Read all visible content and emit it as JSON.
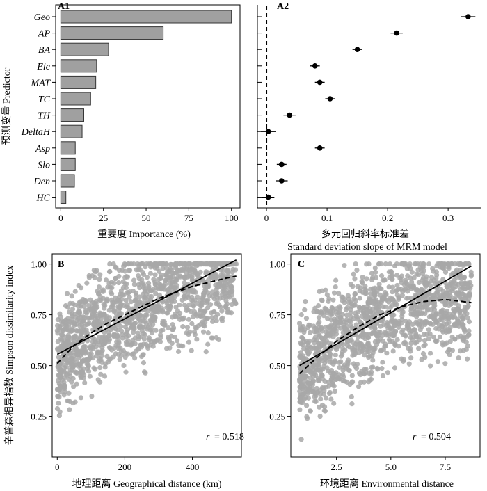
{
  "chart_data": [
    {
      "panel": "A1",
      "type": "bar",
      "orientation": "horizontal",
      "categories": [
        "Geo",
        "AP",
        "BA",
        "Ele",
        "MAT",
        "TC",
        "TH",
        "DeltaH",
        "Asp",
        "Slo",
        "Den",
        "HC"
      ],
      "values": [
        100,
        60,
        28,
        21,
        20.5,
        17.5,
        13.5,
        12.5,
        8.5,
        8.5,
        8,
        3
      ],
      "xlabel": "重要度 Importance (%)",
      "ylabel": "预测变量 Predictor",
      "xticks": [
        0,
        25,
        50,
        75,
        100
      ],
      "xlim": [
        -3,
        105
      ],
      "bar_color": "#a0a0a0"
    },
    {
      "panel": "A2",
      "type": "scatter",
      "subtype": "point-with-error",
      "categories": [
        "Geo",
        "AP",
        "BA",
        "Ele",
        "MAT",
        "TC",
        "TH",
        "DeltaH",
        "Asp",
        "Slo",
        "Den",
        "HC"
      ],
      "values": [
        0.333,
        0.215,
        0.15,
        0.08,
        0.088,
        0.105,
        0.038,
        0.003,
        0.088,
        0.025,
        0.025,
        0.003
      ],
      "errors": [
        0.012,
        0.01,
        0.008,
        0.008,
        0.008,
        0.008,
        0.01,
        0.012,
        0.008,
        0.008,
        0.01,
        0.01
      ],
      "xlabel": "多元回归斜率标准差",
      "xlabel2": "Standard deviation slope of MRM model",
      "xticks": [
        0,
        0.1,
        0.2,
        0.3
      ],
      "xtick_labels": [
        "0",
        "0.1",
        "0.2",
        "0.3"
      ],
      "xlim": [
        -0.015,
        0.355
      ],
      "reference_line": 0
    },
    {
      "panel": "B",
      "type": "scatter",
      "xlabel": "地理距离 Geographical distance (km)",
      "ylabel": "辛普森相异指数 Simpson dissimilarity index",
      "xticks": [
        0,
        200,
        400
      ],
      "yticks": [
        0.25,
        0.5,
        0.75,
        1.0
      ],
      "ytick_labels": [
        "0.25",
        "0.50",
        "0.75",
        "1.00"
      ],
      "xlim": [
        -15,
        545
      ],
      "ylim": [
        0.05,
        1.05
      ],
      "annotation_r": "r",
      "annotation_value": "= 0.518",
      "linear_fit": [
        [
          0,
          0.555
        ],
        [
          530,
          1.02
        ]
      ],
      "smooth_fit": [
        [
          0,
          0.51
        ],
        [
          50,
          0.6
        ],
        [
          100,
          0.66
        ],
        [
          150,
          0.71
        ],
        [
          200,
          0.75
        ],
        [
          250,
          0.79
        ],
        [
          300,
          0.83
        ],
        [
          350,
          0.86
        ],
        [
          400,
          0.89
        ],
        [
          450,
          0.91
        ],
        [
          500,
          0.93
        ],
        [
          530,
          0.94
        ]
      ],
      "point_color": "#a8a8a8"
    },
    {
      "panel": "C",
      "type": "scatter",
      "xlabel": "环境距离 Environmental distance",
      "yticks": [
        0.25,
        0.5,
        0.75,
        1.0
      ],
      "ytick_labels": [
        "0.25",
        "0.50",
        "0.75",
        "1.00"
      ],
      "xticks": [
        2.5,
        5.0,
        7.5
      ],
      "xtick_labels": [
        "2.5",
        "5.0",
        "7.5"
      ],
      "xlim": [
        0.4,
        9.1
      ],
      "ylim": [
        0.05,
        1.05
      ],
      "annotation_r": "r",
      "annotation_value": "= 0.504",
      "linear_fit": [
        [
          0.8,
          0.5
        ],
        [
          8.7,
          0.99
        ]
      ],
      "smooth_fit": [
        [
          0.8,
          0.46
        ],
        [
          1.5,
          0.53
        ],
        [
          2.5,
          0.62
        ],
        [
          3.5,
          0.69
        ],
        [
          4.5,
          0.75
        ],
        [
          5.5,
          0.79
        ],
        [
          6.5,
          0.815
        ],
        [
          7.5,
          0.825
        ],
        [
          8.7,
          0.81
        ]
      ],
      "point_color": "#a8a8a8"
    }
  ]
}
